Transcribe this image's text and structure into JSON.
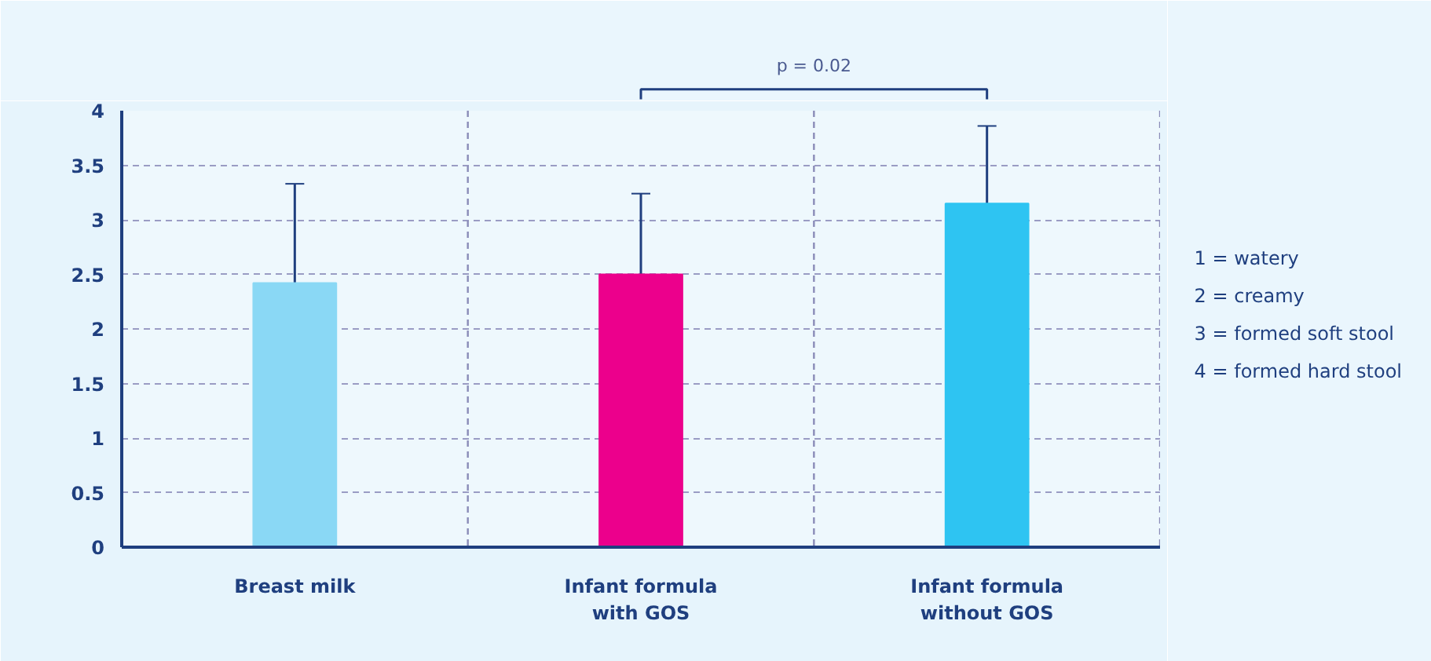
{
  "chart_data": {
    "type": "bar",
    "categories": [
      "Breast milk",
      "Infant formula\nwith GOS",
      "Infant formula\nwithout GOS"
    ],
    "values": [
      2.42,
      2.5,
      3.15
    ],
    "colors": [
      "#8ad8f5",
      "#ec008c",
      "#2ec4f2"
    ],
    "errors": [
      [
        2.42,
        3.33
      ],
      [
        2.5,
        3.24
      ],
      [
        3.15,
        3.86
      ]
    ],
    "ylim": [
      0,
      4
    ],
    "yticks": [
      0,
      0.5,
      1,
      1.5,
      2,
      2.5,
      3,
      3.5,
      4
    ],
    "grid": true,
    "annotations": [
      "p = 0.02",
      "1 = watery",
      "2 = creamy",
      "3 = formed soft stool",
      "4 = formed hard stool"
    ]
  }
}
